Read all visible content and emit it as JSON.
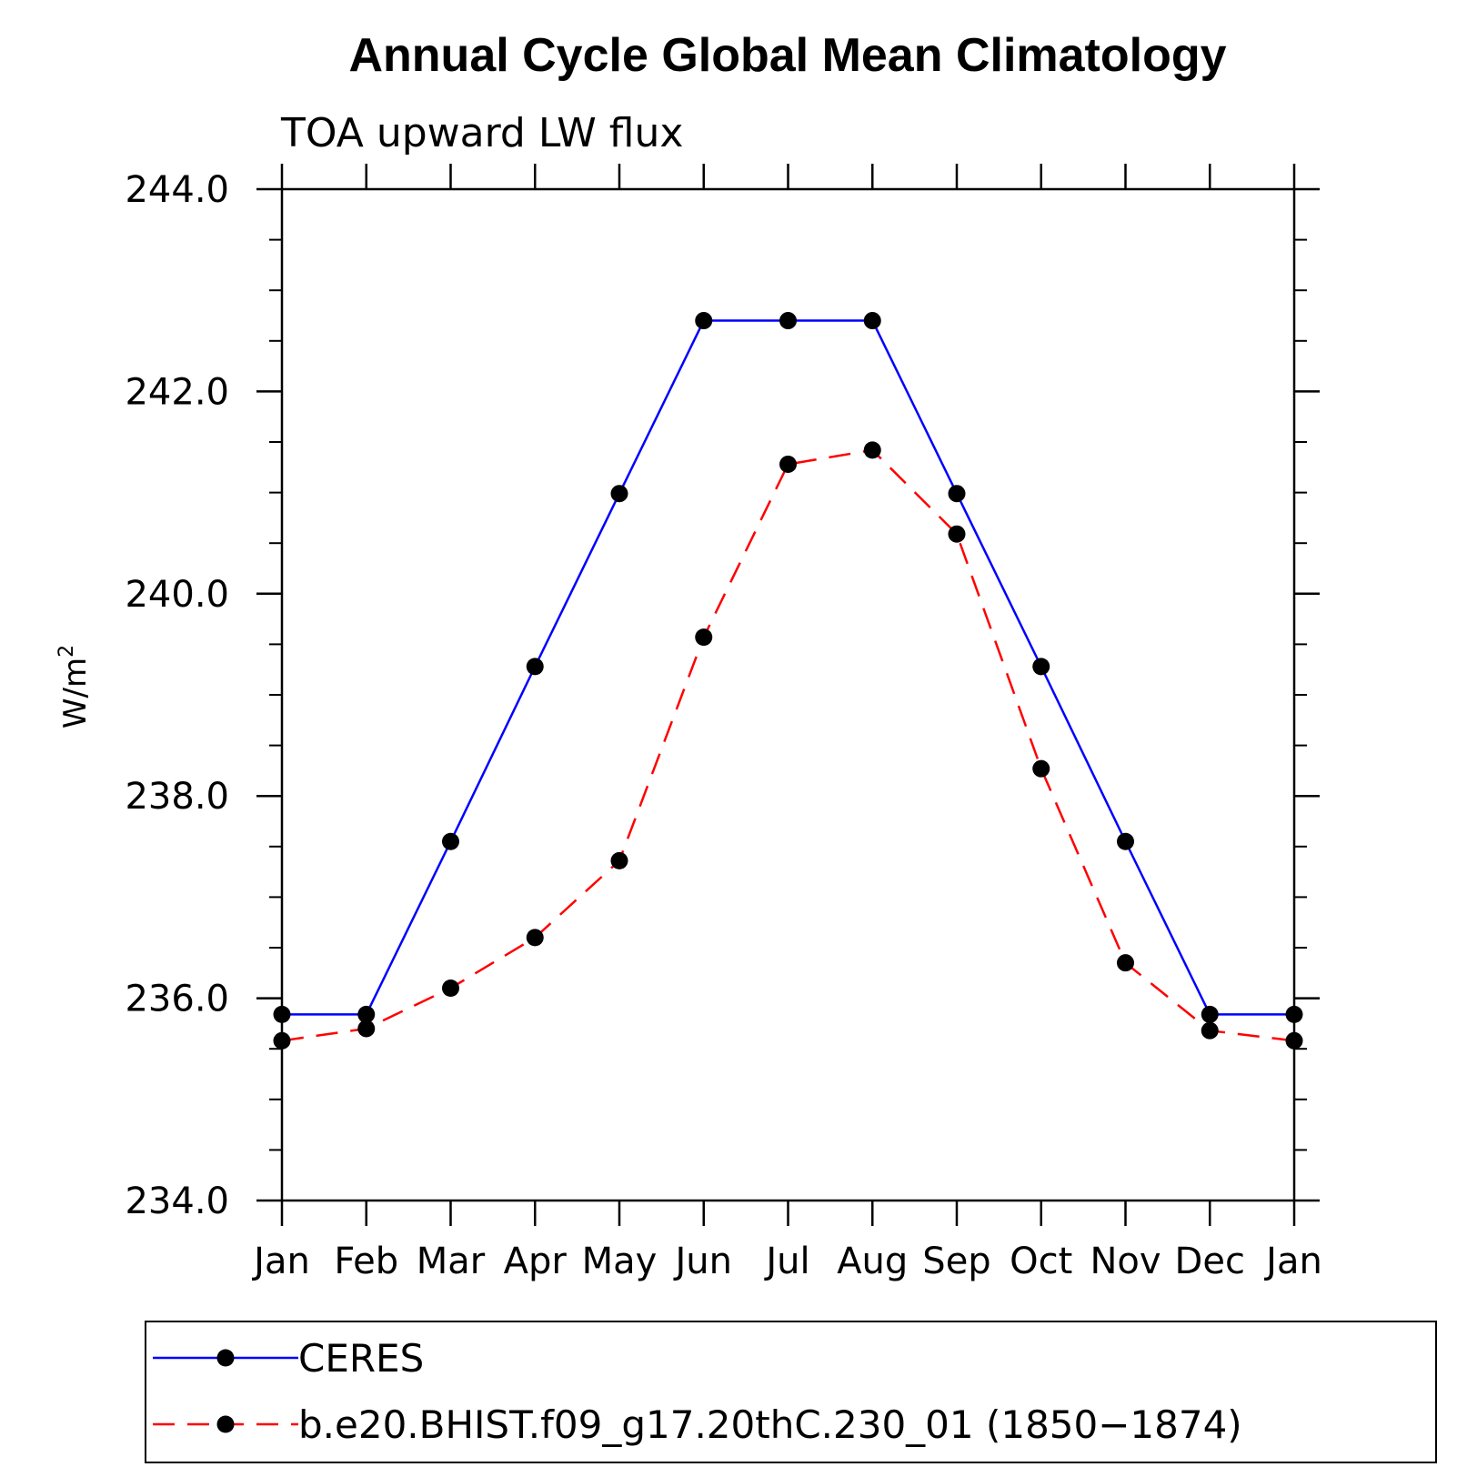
{
  "chart_data": {
    "type": "line",
    "title": "Annual Cycle Global Mean Climatology",
    "subtitle": "TOA upward LW flux",
    "ylabel_base": "W/m",
    "ylabel_exp": "2",
    "xlabel": "",
    "categories": [
      "Jan",
      "Feb",
      "Mar",
      "Apr",
      "May",
      "Jun",
      "Jul",
      "Aug",
      "Sep",
      "Oct",
      "Nov",
      "Dec",
      "Jan"
    ],
    "ylim": [
      234.0,
      244.0
    ],
    "yticks": [
      234.0,
      236.0,
      238.0,
      240.0,
      242.0,
      244.0
    ],
    "ytick_labels": [
      "234.0",
      "236.0",
      "238.0",
      "240.0",
      "242.0",
      "244.0"
    ],
    "y_minor_step": 0.5,
    "grid": false,
    "legend_position": "bottom",
    "series": [
      {
        "name": "CERES",
        "color": "#0000ff",
        "line_style": "solid",
        "marker": "filled-circle",
        "values": [
          235.84,
          235.84,
          237.55,
          239.28,
          240.99,
          242.7,
          242.7,
          242.7,
          240.99,
          239.28,
          237.55,
          235.84,
          235.84
        ]
      },
      {
        "name": "b.e20.BHIST.f09_g17.20thC.230_01 (1850−1874)",
        "color": "#ff0000",
        "line_style": "dashed",
        "marker": "filled-circle",
        "values": [
          235.58,
          235.7,
          236.1,
          236.6,
          237.36,
          239.57,
          241.28,
          241.42,
          240.59,
          238.27,
          236.35,
          235.68,
          235.58
        ]
      }
    ]
  }
}
